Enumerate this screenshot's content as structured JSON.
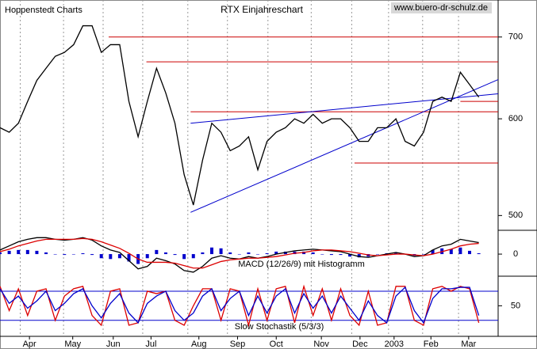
{
  "chart_data": [
    {
      "type": "line",
      "title": "RTX Einjahreschart",
      "source": "Hoppenstedt Charts",
      "url": "www.buero-dr-schulz.de",
      "log_scale": true,
      "xlim": [
        0,
        54.1
      ],
      "ylim": [
        487,
        745
      ],
      "yticks": [
        500,
        600,
        700
      ],
      "x": [
        0,
        1,
        2,
        3,
        4,
        5,
        6,
        7,
        8,
        9,
        10,
        11,
        12,
        13,
        14,
        15,
        16,
        17,
        18,
        19,
        20,
        21,
        22,
        23,
        24,
        25,
        26,
        27,
        28,
        29,
        30,
        31,
        32,
        33,
        34,
        35,
        36,
        37,
        38,
        39,
        40,
        41,
        42,
        43,
        44,
        45,
        46,
        47,
        48,
        49,
        50,
        51,
        52
      ],
      "series": [
        {
          "color": "#000000",
          "values": [
            590,
            585,
            595,
            620,
            645,
            660,
            675,
            680,
            690,
            715,
            715,
            680,
            690,
            690,
            620,
            580,
            620,
            660,
            630,
            595,
            540,
            510,
            555,
            595,
            585,
            565,
            570,
            580,
            545,
            575,
            585,
            590,
            600,
            595,
            605,
            595,
            600,
            600,
            590,
            575,
            575,
            590,
            590,
            600,
            575,
            570,
            585,
            620,
            625,
            620,
            655,
            640,
            625
          ]
        }
      ],
      "hlines": [
        {
          "value": 700,
          "from": 11.8,
          "to": 54.1,
          "color": "#cc0000"
        },
        {
          "value": 668,
          "from": 15.9,
          "to": 54.1,
          "color": "#cc0000"
        },
        {
          "value": 620,
          "from": 50,
          "to": 54.1,
          "color": "#cc0000"
        },
        {
          "value": 608,
          "from": 20.7,
          "to": 54.1,
          "color": "#cc0000"
        },
        {
          "value": 552,
          "from": 38.5,
          "to": 54.1,
          "color": "#cc0000"
        }
      ],
      "trendlines": [
        {
          "x": [
            20.7,
            54.1
          ],
          "values": [
            503,
            646
          ],
          "color": "#0000cc"
        },
        {
          "x": [
            20.7,
            54.1
          ],
          "values": [
            595,
            629
          ],
          "color": "#0000cc"
        }
      ]
    },
    {
      "type": "macd",
      "title": "MACD (12/26/9) mit Histogramm",
      "xlim": [
        0,
        54.1
      ],
      "ylim": [
        -24,
        28
      ],
      "yticks": [
        0
      ],
      "x": [
        0,
        1,
        2,
        3,
        4,
        5,
        6,
        7,
        8,
        9,
        10,
        11,
        12,
        13,
        14,
        15,
        16,
        17,
        18,
        19,
        20,
        21,
        22,
        23,
        24,
        25,
        26,
        27,
        28,
        29,
        30,
        31,
        32,
        33,
        34,
        35,
        36,
        37,
        38,
        39,
        40,
        41,
        42,
        43,
        44,
        45,
        46,
        47,
        48,
        49,
        50,
        51,
        52
      ],
      "series": [
        {
          "color": "#000000",
          "values": [
            5,
            10,
            15,
            18,
            20,
            20,
            18,
            17,
            18,
            20,
            17,
            10,
            5,
            2,
            -8,
            -18,
            -15,
            -5,
            -8,
            -12,
            -20,
            -22,
            -15,
            -5,
            -2,
            -5,
            -6,
            -3,
            -5,
            -3,
            0,
            2,
            4,
            5,
            6,
            5,
            4,
            3,
            0,
            -3,
            -4,
            -2,
            0,
            2,
            0,
            -3,
            -2,
            5,
            10,
            12,
            18,
            16,
            14
          ]
        },
        {
          "color": "#dd0000",
          "values": [
            3,
            6,
            10,
            13,
            16,
            18,
            18,
            18,
            18,
            19,
            18,
            15,
            11,
            7,
            1,
            -6,
            -10,
            -10,
            -10,
            -11,
            -14,
            -17,
            -17,
            -13,
            -9,
            -7,
            -6,
            -5,
            -5,
            -4,
            -3,
            -1,
            1,
            2,
            4,
            5,
            5,
            4,
            3,
            1,
            -1,
            -2,
            -1,
            0,
            0,
            -1,
            -2,
            0,
            3,
            6,
            10,
            12,
            13
          ]
        }
      ],
      "histogram": {
        "color": "#0000cc",
        "values": [
          2,
          4,
          5,
          5,
          4,
          2,
          0,
          -1,
          0,
          1,
          -1,
          -5,
          -6,
          -5,
          -9,
          -12,
          -5,
          5,
          2,
          -1,
          -6,
          -5,
          2,
          8,
          7,
          2,
          0,
          2,
          0,
          1,
          3,
          3,
          3,
          3,
          2,
          0,
          -1,
          -1,
          -3,
          -4,
          -3,
          0,
          1,
          2,
          0,
          -2,
          0,
          5,
          7,
          6,
          8,
          4,
          1
        ]
      }
    },
    {
      "type": "stochastic",
      "title": "Slow Stochastik (5/3/3)",
      "xlim": [
        0,
        54.1
      ],
      "ylim": [
        -8,
        106
      ],
      "yticks": [
        50
      ],
      "levels": [
        {
          "value": 80,
          "color": "#0000cc"
        },
        {
          "value": 20,
          "color": "#0000cc"
        }
      ],
      "x": [
        0,
        1,
        2,
        3,
        4,
        5,
        6,
        7,
        8,
        9,
        10,
        11,
        12,
        13,
        14,
        15,
        16,
        17,
        18,
        19,
        20,
        21,
        22,
        23,
        24,
        25,
        26,
        27,
        28,
        29,
        30,
        31,
        32,
        33,
        34,
        35,
        36,
        37,
        38,
        39,
        40,
        41,
        42,
        43,
        44,
        45,
        46,
        47,
        48,
        49,
        50,
        51,
        52
      ],
      "series": [
        {
          "color": "#dd0000",
          "values": [
            90,
            40,
            85,
            30,
            80,
            85,
            20,
            70,
            85,
            90,
            30,
            10,
            80,
            85,
            10,
            15,
            80,
            75,
            80,
            20,
            10,
            50,
            85,
            85,
            20,
            85,
            80,
            10,
            85,
            20,
            85,
            90,
            15,
            90,
            30,
            85,
            20,
            85,
            30,
            10,
            80,
            10,
            15,
            90,
            90,
            20,
            10,
            85,
            90,
            80,
            90,
            85,
            15
          ]
        },
        {
          "color": "#0000cc",
          "values": [
            85,
            55,
            70,
            45,
            60,
            80,
            40,
            55,
            75,
            85,
            50,
            25,
            55,
            75,
            35,
            15,
            55,
            70,
            80,
            40,
            20,
            35,
            70,
            85,
            40,
            65,
            80,
            30,
            70,
            35,
            70,
            85,
            35,
            75,
            45,
            70,
            35,
            70,
            45,
            20,
            60,
            30,
            15,
            70,
            88,
            40,
            15,
            65,
            85,
            85,
            88,
            88,
            30
          ]
        }
      ],
      "xgrid": [
        2.2,
        6.9,
        11.2,
        15.5,
        20.4,
        24.7,
        29.1,
        33.8,
        38.2,
        42.2,
        45.9,
        49.8
      ],
      "xticks": [
        {
          "value": 3.2,
          "label": "Apr"
        },
        {
          "value": 7.9,
          "label": "May"
        },
        {
          "value": 12.3,
          "label": "Jun"
        },
        {
          "value": 16.4,
          "label": "Jul"
        },
        {
          "value": 21.6,
          "label": "Aug"
        },
        {
          "value": 25.8,
          "label": "Sep"
        },
        {
          "value": 30,
          "label": "Oct"
        },
        {
          "value": 34.9,
          "label": "Nov"
        },
        {
          "value": 39.1,
          "label": "Dec"
        },
        {
          "value": 42.8,
          "label": "2003"
        },
        {
          "value": 46.8,
          "label": "Feb"
        },
        {
          "value": 50.9,
          "label": "Mar"
        }
      ]
    }
  ]
}
